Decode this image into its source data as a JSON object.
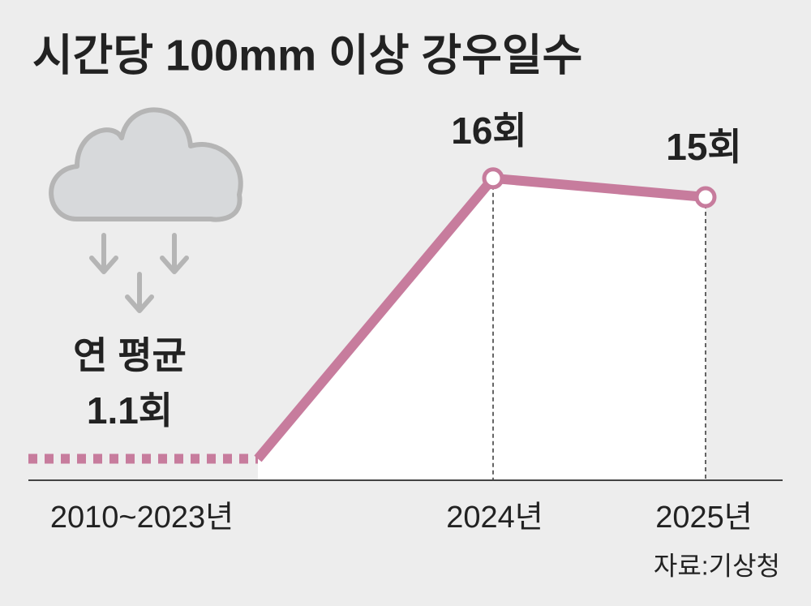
{
  "chart_data": {
    "type": "line",
    "title": "시간당 100mm 이상 강우일수",
    "categories": [
      "2010~2023년",
      "2024년",
      "2025년"
    ],
    "series": [
      {
        "name": "강우일수",
        "color": "#c77c9d",
        "values": [
          1.1,
          16,
          15
        ],
        "value_labels": [
          "1.1회",
          "16회",
          "15회"
        ]
      }
    ],
    "annotation": "연 평균",
    "source": "자료:기상청",
    "ylim": [
      0,
      20
    ]
  }
}
